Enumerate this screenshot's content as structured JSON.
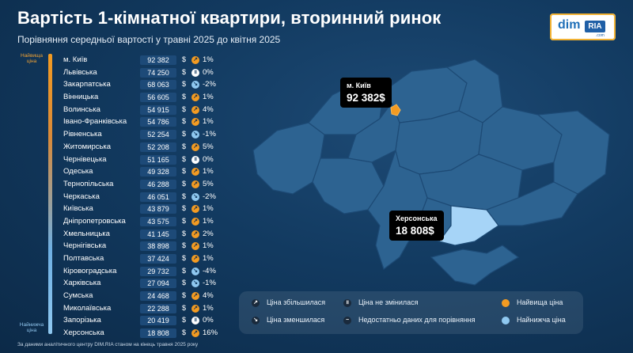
{
  "title": "Вартість 1-кімнатної квартири, вторинний ринок",
  "subtitle": "Порівняння середньої вартості у травні 2025 до квітня 2025",
  "logo": {
    "dim": "dim",
    "ria": "RIA",
    "com": ".com"
  },
  "scale": {
    "top": "Найвища ціна",
    "bottom": "Найнижча ціна"
  },
  "currency": "$",
  "chart_data": {
    "type": "table",
    "columns": [
      "region",
      "price_usd",
      "change_pct"
    ],
    "rows": [
      {
        "name": "м. Київ",
        "price": "92 382",
        "pct": "1%",
        "dir": "up",
        "value": 92382,
        "change": 1
      },
      {
        "name": "Львівська",
        "price": "74 250",
        "pct": "0%",
        "dir": "same",
        "value": 74250,
        "change": 0
      },
      {
        "name": "Закарпатська",
        "price": "68 063",
        "pct": "-2%",
        "dir": "down",
        "value": 68063,
        "change": -2
      },
      {
        "name": "Вінницька",
        "price": "56 605",
        "pct": "1%",
        "dir": "up",
        "value": 56605,
        "change": 1
      },
      {
        "name": "Волинська",
        "price": "54 915",
        "pct": "4%",
        "dir": "up",
        "value": 54915,
        "change": 4
      },
      {
        "name": "Івано-Франківська",
        "price": "54 786",
        "pct": "1%",
        "dir": "up",
        "value": 54786,
        "change": 1
      },
      {
        "name": "Рівненська",
        "price": "52 254",
        "pct": "-1%",
        "dir": "down",
        "value": 52254,
        "change": -1
      },
      {
        "name": "Житомирська",
        "price": "52 208",
        "pct": "5%",
        "dir": "up",
        "value": 52208,
        "change": 5
      },
      {
        "name": "Чернівецька",
        "price": "51 165",
        "pct": "0%",
        "dir": "same",
        "value": 51165,
        "change": 0
      },
      {
        "name": "Одеська",
        "price": "49 328",
        "pct": "1%",
        "dir": "up",
        "value": 49328,
        "change": 1
      },
      {
        "name": "Тернопільська",
        "price": "46 288",
        "pct": "5%",
        "dir": "up",
        "value": 46288,
        "change": 5
      },
      {
        "name": "Черкаська",
        "price": "46 051",
        "pct": "-2%",
        "dir": "down",
        "value": 46051,
        "change": -2
      },
      {
        "name": "Київська",
        "price": "43 879",
        "pct": "1%",
        "dir": "up",
        "value": 43879,
        "change": 1
      },
      {
        "name": "Дніпропетровська",
        "price": "43 575",
        "pct": "1%",
        "dir": "up",
        "value": 43575,
        "change": 1
      },
      {
        "name": "Хмельницька",
        "price": "41 145",
        "pct": "2%",
        "dir": "up",
        "value": 41145,
        "change": 2
      },
      {
        "name": "Чернігівська",
        "price": "38 898",
        "pct": "1%",
        "dir": "up",
        "value": 38898,
        "change": 1
      },
      {
        "name": "Полтавська",
        "price": "37 424",
        "pct": "1%",
        "dir": "up",
        "value": 37424,
        "change": 1
      },
      {
        "name": "Кіровоградська",
        "price": "29 732",
        "pct": "-4%",
        "dir": "down",
        "value": 29732,
        "change": -4
      },
      {
        "name": "Харківська",
        "price": "27 094",
        "pct": "-1%",
        "dir": "down",
        "value": 27094,
        "change": -1
      },
      {
        "name": "Сумська",
        "price": "24 468",
        "pct": "4%",
        "dir": "up",
        "value": 24468,
        "change": 4
      },
      {
        "name": "Миколаївська",
        "price": "22 288",
        "pct": "1%",
        "dir": "up",
        "value": 22288,
        "change": 1
      },
      {
        "name": "Запорізька",
        "price": "20 419",
        "pct": "0%",
        "dir": "same",
        "value": 20419,
        "change": 0
      },
      {
        "name": "Херсонська",
        "price": "18 808",
        "pct": "16%",
        "dir": "up",
        "value": 18808,
        "change": 16
      }
    ]
  },
  "map": {
    "highest": {
      "name": "м. Київ",
      "value": "92 382$"
    },
    "lowest": {
      "name": "Херсонська",
      "value": "18 808$"
    }
  },
  "legend": {
    "up": "Ціна збільшилася",
    "down": "Ціна зменшилася",
    "same": "Ціна не змінилася",
    "nodata": "Недостатньо даних для порівняння",
    "highest": "Найвища ціна",
    "lowest": "Найнижча ціна"
  },
  "footnote": "За даними аналітичного центру DIM.RIA станом на кінець травня 2025 року",
  "colors": {
    "background": "#123a60",
    "up": "#f39b22",
    "down": "#8fc8f0",
    "region": "#2d6391",
    "highlight_low": "#a6d4f7"
  }
}
